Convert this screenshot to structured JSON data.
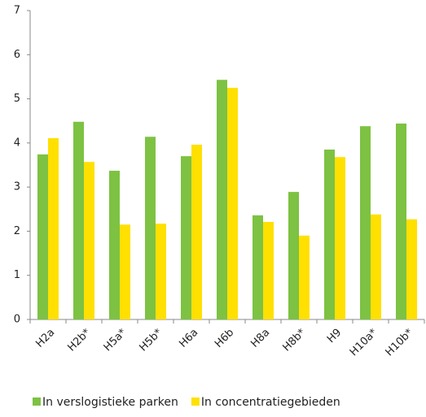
{
  "chart_data": {
    "type": "bar",
    "categories": [
      "H2a",
      "H2b*",
      "H5a*",
      "H5b*",
      "H6a",
      "H6b",
      "H8a",
      "H8b*",
      "H9",
      "H10a*",
      "H10b*"
    ],
    "series": [
      {
        "name": "In verslogistieke parken",
        "color": "#7dc242",
        "values": [
          3.74,
          4.48,
          3.37,
          4.14,
          3.7,
          5.43,
          2.36,
          2.89,
          3.85,
          4.38,
          4.44
        ]
      },
      {
        "name": "In concentratiegebieden",
        "color": "#ffe000",
        "values": [
          4.11,
          3.57,
          2.15,
          2.17,
          3.96,
          5.25,
          2.21,
          1.9,
          3.68,
          2.38,
          2.27
        ]
      }
    ],
    "ylim": [
      0,
      7
    ],
    "yticks": [
      0,
      1,
      2,
      3,
      4,
      5,
      6,
      7
    ],
    "legend": "bottom"
  }
}
